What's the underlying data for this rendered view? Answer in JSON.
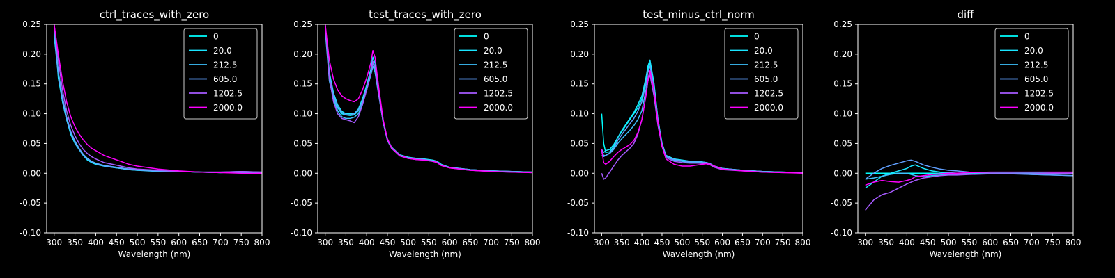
{
  "chart_data": [
    {
      "type": "line",
      "title": "ctrl_traces_with_zero",
      "xlabel": "Wavelength (nm)",
      "ylabel": "",
      "xlim": [
        282,
        800
      ],
      "ylim": [
        -0.1,
        0.25
      ],
      "xticks": [
        "300",
        "350",
        "400",
        "450",
        "500",
        "550",
        "600",
        "650",
        "700",
        "750",
        "800"
      ],
      "yticks": [
        "0.25",
        "0.20",
        "0.15",
        "0.10",
        "0.05",
        "0.00",
        "-0.05",
        "-0.10"
      ],
      "legend_position": "top-right",
      "x": [
        300,
        310,
        320,
        330,
        340,
        350,
        360,
        370,
        380,
        390,
        400,
        420,
        440,
        460,
        480,
        500,
        550,
        600,
        650,
        700,
        750,
        800
      ],
      "series": [
        {
          "name": "0",
          "color": "#00ffff",
          "values": [
            0.25,
            0.16,
            0.12,
            0.09,
            0.065,
            0.05,
            0.04,
            0.03,
            0.022,
            0.018,
            0.015,
            0.012,
            0.01,
            0.008,
            0.006,
            0.005,
            0.004,
            0.003,
            0.002,
            0.001,
            0.002,
            0.001
          ]
        },
        {
          "name": "20.0",
          "color": "#1ae5ff",
          "values": [
            0.24,
            0.17,
            0.125,
            0.092,
            0.068,
            0.052,
            0.041,
            0.031,
            0.024,
            0.019,
            0.016,
            0.013,
            0.011,
            0.009,
            0.007,
            0.006,
            0.004,
            0.003,
            0.002,
            0.001,
            0.002,
            0.001
          ]
        },
        {
          "name": "212.5",
          "color": "#3dc2ff",
          "values": [
            0.23,
            0.165,
            0.12,
            0.09,
            0.067,
            0.051,
            0.04,
            0.03,
            0.023,
            0.019,
            0.016,
            0.012,
            0.01,
            0.008,
            0.006,
            0.005,
            0.003,
            0.003,
            0.002,
            0.001,
            0.002,
            0.002
          ]
        },
        {
          "name": "605.0",
          "color": "#61a0ff",
          "values": [
            0.25,
            0.17,
            0.128,
            0.095,
            0.07,
            0.054,
            0.042,
            0.032,
            0.025,
            0.02,
            0.017,
            0.013,
            0.011,
            0.009,
            0.007,
            0.006,
            0.004,
            0.003,
            0.002,
            0.002,
            0.003,
            0.002
          ]
        },
        {
          "name": "1202.5",
          "color": "#a65aff",
          "values": [
            0.25,
            0.19,
            0.14,
            0.105,
            0.08,
            0.063,
            0.05,
            0.04,
            0.033,
            0.028,
            0.024,
            0.018,
            0.015,
            0.012,
            0.009,
            0.007,
            0.005,
            0.003,
            0.002,
            0.002,
            0.003,
            0.002
          ]
        },
        {
          "name": "2000.0",
          "color": "#ff00ff",
          "values": [
            0.25,
            0.2,
            0.155,
            0.12,
            0.095,
            0.078,
            0.066,
            0.056,
            0.048,
            0.042,
            0.038,
            0.03,
            0.025,
            0.02,
            0.015,
            0.012,
            0.007,
            0.004,
            0.002,
            0.001,
            0.0,
            0.0
          ]
        }
      ]
    },
    {
      "type": "line",
      "title": "test_traces_with_zero",
      "xlabel": "Wavelength (nm)",
      "ylabel": "",
      "xlim": [
        282,
        800
      ],
      "ylim": [
        -0.1,
        0.25
      ],
      "xticks": [
        "300",
        "350",
        "400",
        "450",
        "500",
        "550",
        "600",
        "650",
        "700",
        "750",
        "800"
      ],
      "yticks": [
        "0.25",
        "0.20",
        "0.15",
        "0.10",
        "0.05",
        "0.00",
        "-0.05",
        "-0.10"
      ],
      "legend_position": "top-right",
      "x": [
        300,
        310,
        320,
        330,
        340,
        350,
        360,
        370,
        380,
        390,
        400,
        410,
        415,
        420,
        430,
        440,
        450,
        460,
        480,
        500,
        520,
        540,
        560,
        570,
        580,
        600,
        650,
        700,
        750,
        800
      ],
      "series": [
        {
          "name": "0",
          "color": "#00ffff",
          "values": [
            0.25,
            0.16,
            0.13,
            0.11,
            0.1,
            0.098,
            0.097,
            0.098,
            0.105,
            0.12,
            0.14,
            0.165,
            0.18,
            0.175,
            0.13,
            0.085,
            0.055,
            0.042,
            0.03,
            0.026,
            0.025,
            0.023,
            0.02,
            0.018,
            0.014,
            0.01,
            0.006,
            0.004,
            0.003,
            0.002
          ]
        },
        {
          "name": "20.0",
          "color": "#1ae5ff",
          "values": [
            0.25,
            0.17,
            0.135,
            0.115,
            0.104,
            0.1,
            0.1,
            0.1,
            0.108,
            0.125,
            0.148,
            0.175,
            0.195,
            0.185,
            0.135,
            0.088,
            0.058,
            0.044,
            0.031,
            0.027,
            0.025,
            0.024,
            0.022,
            0.02,
            0.015,
            0.01,
            0.006,
            0.004,
            0.003,
            0.002
          ]
        },
        {
          "name": "212.5",
          "color": "#3dc2ff",
          "values": [
            0.24,
            0.155,
            0.125,
            0.105,
            0.095,
            0.092,
            0.092,
            0.094,
            0.1,
            0.116,
            0.14,
            0.165,
            0.18,
            0.17,
            0.127,
            0.085,
            0.056,
            0.043,
            0.03,
            0.026,
            0.024,
            0.023,
            0.021,
            0.019,
            0.014,
            0.01,
            0.006,
            0.004,
            0.003,
            0.002
          ]
        },
        {
          "name": "605.0",
          "color": "#61a0ff",
          "values": [
            0.25,
            0.165,
            0.13,
            0.112,
            0.102,
            0.098,
            0.098,
            0.1,
            0.106,
            0.12,
            0.143,
            0.168,
            0.185,
            0.178,
            0.13,
            0.087,
            0.057,
            0.043,
            0.03,
            0.026,
            0.025,
            0.023,
            0.021,
            0.019,
            0.014,
            0.01,
            0.006,
            0.004,
            0.003,
            0.002
          ]
        },
        {
          "name": "1202.5",
          "color": "#a65aff",
          "values": [
            0.25,
            0.16,
            0.12,
            0.1,
            0.092,
            0.09,
            0.088,
            0.085,
            0.095,
            0.115,
            0.14,
            0.168,
            0.188,
            0.178,
            0.13,
            0.087,
            0.056,
            0.042,
            0.029,
            0.025,
            0.023,
            0.022,
            0.02,
            0.018,
            0.013,
            0.009,
            0.005,
            0.003,
            0.002,
            0.001
          ]
        },
        {
          "name": "2000.0",
          "color": "#ff00ff",
          "values": [
            0.25,
            0.19,
            0.158,
            0.14,
            0.13,
            0.125,
            0.122,
            0.12,
            0.125,
            0.14,
            0.16,
            0.185,
            0.206,
            0.195,
            0.14,
            0.09,
            0.058,
            0.043,
            0.03,
            0.025,
            0.023,
            0.022,
            0.02,
            0.018,
            0.013,
            0.009,
            0.005,
            0.003,
            0.002,
            0.001
          ]
        }
      ]
    },
    {
      "type": "line",
      "title": "test_minus_ctrl_norm",
      "xlabel": "Wavelength (nm)",
      "ylabel": "",
      "xlim": [
        282,
        800
      ],
      "ylim": [
        -0.1,
        0.25
      ],
      "xticks": [
        "300",
        "350",
        "400",
        "450",
        "500",
        "550",
        "600",
        "650",
        "700",
        "750",
        "800"
      ],
      "yticks": [
        "0.25",
        "0.20",
        "0.15",
        "0.10",
        "0.05",
        "0.00",
        "-0.05",
        "-0.10"
      ],
      "legend_position": "top-right",
      "x": [
        300,
        305,
        310,
        320,
        330,
        340,
        350,
        360,
        370,
        380,
        390,
        400,
        410,
        415,
        420,
        430,
        440,
        450,
        460,
        480,
        500,
        520,
        540,
        560,
        570,
        580,
        600,
        650,
        700,
        750,
        800
      ],
      "series": [
        {
          "name": "0",
          "color": "#00ffff",
          "values": [
            0.1,
            0.05,
            0.035,
            0.036,
            0.045,
            0.06,
            0.07,
            0.08,
            0.09,
            0.1,
            0.11,
            0.125,
            0.155,
            0.175,
            0.185,
            0.15,
            0.09,
            0.05,
            0.03,
            0.024,
            0.022,
            0.02,
            0.02,
            0.018,
            0.016,
            0.012,
            0.008,
            0.005,
            0.003,
            0.002,
            0.001
          ]
        },
        {
          "name": "20.0",
          "color": "#1ae5ff",
          "values": [
            0.04,
            0.035,
            0.038,
            0.04,
            0.048,
            0.06,
            0.072,
            0.082,
            0.092,
            0.102,
            0.115,
            0.13,
            0.16,
            0.18,
            0.19,
            0.152,
            0.09,
            0.05,
            0.03,
            0.024,
            0.022,
            0.02,
            0.02,
            0.018,
            0.016,
            0.012,
            0.008,
            0.005,
            0.003,
            0.002,
            0.001
          ]
        },
        {
          "name": "212.5",
          "color": "#3dc2ff",
          "values": [
            0.035,
            0.03,
            0.03,
            0.033,
            0.04,
            0.05,
            0.058,
            0.065,
            0.072,
            0.08,
            0.09,
            0.105,
            0.14,
            0.16,
            0.17,
            0.14,
            0.085,
            0.048,
            0.028,
            0.022,
            0.02,
            0.018,
            0.018,
            0.017,
            0.015,
            0.011,
            0.007,
            0.005,
            0.003,
            0.002,
            0.001
          ]
        },
        {
          "name": "605.0",
          "color": "#61a0ff",
          "values": [
            0.03,
            0.028,
            0.03,
            0.034,
            0.042,
            0.055,
            0.065,
            0.074,
            0.083,
            0.092,
            0.104,
            0.12,
            0.15,
            0.17,
            0.18,
            0.145,
            0.088,
            0.049,
            0.029,
            0.023,
            0.021,
            0.019,
            0.019,
            0.018,
            0.016,
            0.012,
            0.008,
            0.005,
            0.003,
            0.002,
            0.001
          ]
        },
        {
          "name": "1202.5",
          "color": "#a65aff",
          "values": [
            0.0,
            -0.01,
            -0.008,
            0.002,
            0.012,
            0.022,
            0.03,
            0.036,
            0.042,
            0.05,
            0.065,
            0.09,
            0.13,
            0.155,
            0.165,
            0.13,
            0.08,
            0.045,
            0.026,
            0.02,
            0.018,
            0.017,
            0.017,
            0.016,
            0.014,
            0.01,
            0.006,
            0.004,
            0.002,
            0.001,
            0.001
          ]
        },
        {
          "name": "2000.0",
          "color": "#ff00ff",
          "values": [
            0.04,
            0.018,
            0.015,
            0.02,
            0.028,
            0.035,
            0.04,
            0.044,
            0.048,
            0.055,
            0.068,
            0.09,
            0.13,
            0.158,
            0.172,
            0.14,
            0.085,
            0.045,
            0.024,
            0.015,
            0.012,
            0.012,
            0.014,
            0.016,
            0.015,
            0.012,
            0.007,
            0.004,
            0.002,
            0.001,
            0.0
          ]
        }
      ]
    },
    {
      "type": "line",
      "title": "diff",
      "xlabel": "Wavelength (nm)",
      "ylabel": "",
      "xlim": [
        282,
        800
      ],
      "ylim": [
        -0.1,
        0.25
      ],
      "xticks": [
        "300",
        "350",
        "400",
        "450",
        "500",
        "550",
        "600",
        "650",
        "700",
        "750",
        "800"
      ],
      "yticks": [
        "0.25",
        "0.20",
        "0.15",
        "0.10",
        "0.05",
        "0.00",
        "-0.05",
        "-0.10"
      ],
      "legend_position": "top-right",
      "x": [
        300,
        320,
        340,
        360,
        380,
        400,
        410,
        420,
        440,
        460,
        480,
        500,
        520,
        550,
        600,
        650,
        700,
        750,
        800
      ],
      "series": [
        {
          "name": "0",
          "color": "#00ffff",
          "values": [
            0.0,
            0.0,
            0.0,
            0.0,
            0.0,
            0.0,
            0.0,
            0.0,
            0.0,
            0.0,
            0.0,
            0.0,
            0.0,
            0.0,
            0.0,
            0.0,
            0.0,
            0.0,
            0.0
          ]
        },
        {
          "name": "20.0",
          "color": "#1ae5ff",
          "values": [
            -0.025,
            -0.015,
            -0.005,
            0.0,
            0.004,
            0.008,
            0.012,
            0.014,
            0.008,
            0.004,
            0.002,
            0.001,
            0.0,
            0.0,
            0.0,
            0.0,
            0.0,
            0.0,
            0.0
          ]
        },
        {
          "name": "212.5",
          "color": "#3dc2ff",
          "values": [
            -0.01,
            -0.008,
            -0.005,
            -0.002,
            0.0,
            0.0,
            -0.002,
            -0.004,
            -0.006,
            -0.004,
            -0.003,
            -0.002,
            -0.002,
            -0.001,
            -0.001,
            0.0,
            -0.002,
            -0.003,
            -0.004
          ]
        },
        {
          "name": "605.0",
          "color": "#61a0ff",
          "values": [
            -0.01,
            0.0,
            0.008,
            0.013,
            0.017,
            0.021,
            0.022,
            0.02,
            0.014,
            0.01,
            0.007,
            0.005,
            0.004,
            0.002,
            0.0,
            -0.001,
            -0.002,
            -0.003,
            -0.004
          ]
        },
        {
          "name": "1202.5",
          "color": "#a65aff",
          "values": [
            -0.062,
            -0.045,
            -0.036,
            -0.032,
            -0.025,
            -0.018,
            -0.015,
            -0.012,
            -0.008,
            -0.006,
            -0.004,
            -0.003,
            -0.003,
            -0.002,
            -0.001,
            -0.001,
            -0.001,
            0.0,
            0.0
          ]
        },
        {
          "name": "2000.0",
          "color": "#ff00ff",
          "values": [
            -0.02,
            -0.015,
            -0.012,
            -0.014,
            -0.015,
            -0.012,
            -0.01,
            -0.006,
            -0.004,
            -0.002,
            -0.001,
            0.0,
            0.0,
            0.001,
            0.002,
            0.002,
            0.002,
            0.002,
            0.002
          ]
        }
      ]
    }
  ]
}
